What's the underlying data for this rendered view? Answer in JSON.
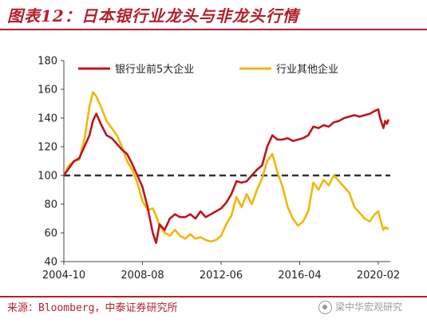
{
  "header": {
    "title": "图表12：日本银行业龙头与非龙头行情"
  },
  "footer": {
    "source": "来源：Bloomberg，中泰证券研究所",
    "watermark": "梁中华宏观研究"
  },
  "colors": {
    "leaders": "#c0141c",
    "others": "#f2b705",
    "reference": "#333333",
    "accent": "#b51f2a"
  },
  "icons": [
    "wechat-icon"
  ],
  "chart_data": {
    "type": "line",
    "xlabel": "",
    "ylabel": "",
    "x_ticks": [
      "2004-10",
      "2008-08",
      "2012-06",
      "2016-04",
      "2020-02"
    ],
    "xlim": [
      "2004-10",
      "2020-09"
    ],
    "ylim": [
      40,
      180
    ],
    "y_ticks": [
      40,
      60,
      80,
      100,
      120,
      140,
      160,
      180
    ],
    "grid": false,
    "legend_position": "top",
    "reference_line": {
      "y": 100,
      "style": "dashed"
    },
    "series": [
      {
        "name": "银行业前5大企业",
        "color": "#c0141c",
        "points": [
          [
            "2004-10",
            100
          ],
          [
            "2005-01",
            105
          ],
          [
            "2005-04",
            110
          ],
          [
            "2005-07",
            112
          ],
          [
            "2005-10",
            120
          ],
          [
            "2006-01",
            128
          ],
          [
            "2006-03",
            138
          ],
          [
            "2006-05",
            143
          ],
          [
            "2006-08",
            135
          ],
          [
            "2006-11",
            128
          ],
          [
            "2007-02",
            126
          ],
          [
            "2007-05",
            122
          ],
          [
            "2007-08",
            118
          ],
          [
            "2007-11",
            115
          ],
          [
            "2008-02",
            108
          ],
          [
            "2008-05",
            100
          ],
          [
            "2008-08",
            92
          ],
          [
            "2008-11",
            78
          ],
          [
            "2009-02",
            60
          ],
          [
            "2009-04",
            53
          ],
          [
            "2009-06",
            66
          ],
          [
            "2009-09",
            62
          ],
          [
            "2009-12",
            70
          ],
          [
            "2010-03",
            73
          ],
          [
            "2010-06",
            71
          ],
          [
            "2010-09",
            71
          ],
          [
            "2010-12",
            73
          ],
          [
            "2011-03",
            70
          ],
          [
            "2011-06",
            75
          ],
          [
            "2011-09",
            71
          ],
          [
            "2011-12",
            73
          ],
          [
            "2012-03",
            75
          ],
          [
            "2012-06",
            77
          ],
          [
            "2012-09",
            81
          ],
          [
            "2012-12",
            87
          ],
          [
            "2013-03",
            96
          ],
          [
            "2013-06",
            95
          ],
          [
            "2013-09",
            96
          ],
          [
            "2013-12",
            100
          ],
          [
            "2014-03",
            104
          ],
          [
            "2014-06",
            107
          ],
          [
            "2014-09",
            120
          ],
          [
            "2014-12",
            128
          ],
          [
            "2015-03",
            125
          ],
          [
            "2015-06",
            125
          ],
          [
            "2015-09",
            126
          ],
          [
            "2015-12",
            124
          ],
          [
            "2016-03",
            125
          ],
          [
            "2016-06",
            126
          ],
          [
            "2016-09",
            128
          ],
          [
            "2016-12",
            134
          ],
          [
            "2017-03",
            133
          ],
          [
            "2017-06",
            135
          ],
          [
            "2017-09",
            134
          ],
          [
            "2017-12",
            137
          ],
          [
            "2018-03",
            138
          ],
          [
            "2018-06",
            140
          ],
          [
            "2018-09",
            141
          ],
          [
            "2018-12",
            142
          ],
          [
            "2019-03",
            141
          ],
          [
            "2019-06",
            142
          ],
          [
            "2019-09",
            143
          ],
          [
            "2019-12",
            145
          ],
          [
            "2020-02",
            146
          ],
          [
            "2020-03",
            140
          ],
          [
            "2020-05",
            133
          ],
          [
            "2020-06",
            138
          ],
          [
            "2020-07",
            136
          ],
          [
            "2020-08",
            139
          ]
        ]
      },
      {
        "name": "行业其他企业",
        "color": "#f2b705",
        "points": [
          [
            "2004-10",
            100
          ],
          [
            "2005-01",
            107
          ],
          [
            "2005-04",
            110
          ],
          [
            "2005-07",
            111
          ],
          [
            "2005-10",
            125
          ],
          [
            "2006-01",
            148
          ],
          [
            "2006-03",
            158
          ],
          [
            "2006-05",
            155
          ],
          [
            "2006-08",
            147
          ],
          [
            "2006-11",
            138
          ],
          [
            "2007-02",
            133
          ],
          [
            "2007-05",
            128
          ],
          [
            "2007-08",
            120
          ],
          [
            "2007-11",
            110
          ],
          [
            "2008-02",
            104
          ],
          [
            "2008-05",
            95
          ],
          [
            "2008-08",
            82
          ],
          [
            "2008-11",
            76
          ],
          [
            "2009-02",
            77
          ],
          [
            "2009-04",
            72
          ],
          [
            "2009-06",
            65
          ],
          [
            "2009-09",
            60
          ],
          [
            "2009-12",
            58
          ],
          [
            "2010-03",
            62
          ],
          [
            "2010-06",
            58
          ],
          [
            "2010-09",
            56
          ],
          [
            "2010-12",
            59
          ],
          [
            "2011-03",
            56
          ],
          [
            "2011-06",
            57
          ],
          [
            "2011-09",
            55
          ],
          [
            "2011-12",
            54
          ],
          [
            "2012-03",
            55
          ],
          [
            "2012-06",
            58
          ],
          [
            "2012-09",
            66
          ],
          [
            "2012-12",
            72
          ],
          [
            "2013-03",
            85
          ],
          [
            "2013-06",
            78
          ],
          [
            "2013-09",
            87
          ],
          [
            "2013-12",
            80
          ],
          [
            "2014-03",
            90
          ],
          [
            "2014-06",
            98
          ],
          [
            "2014-09",
            110
          ],
          [
            "2014-12",
            115
          ],
          [
            "2015-03",
            102
          ],
          [
            "2015-06",
            92
          ],
          [
            "2015-09",
            78
          ],
          [
            "2015-12",
            70
          ],
          [
            "2016-03",
            65
          ],
          [
            "2016-06",
            68
          ],
          [
            "2016-09",
            75
          ],
          [
            "2016-12",
            95
          ],
          [
            "2017-03",
            90
          ],
          [
            "2017-06",
            97
          ],
          [
            "2017-09",
            93
          ],
          [
            "2017-12",
            100
          ],
          [
            "2018-03",
            96
          ],
          [
            "2018-06",
            92
          ],
          [
            "2018-09",
            88
          ],
          [
            "2018-12",
            78
          ],
          [
            "2019-03",
            74
          ],
          [
            "2019-06",
            70
          ],
          [
            "2019-09",
            68
          ],
          [
            "2019-12",
            73
          ],
          [
            "2020-02",
            75
          ],
          [
            "2020-03",
            70
          ],
          [
            "2020-05",
            62
          ],
          [
            "2020-06",
            64
          ],
          [
            "2020-07",
            63
          ],
          [
            "2020-08",
            63
          ]
        ]
      }
    ]
  }
}
